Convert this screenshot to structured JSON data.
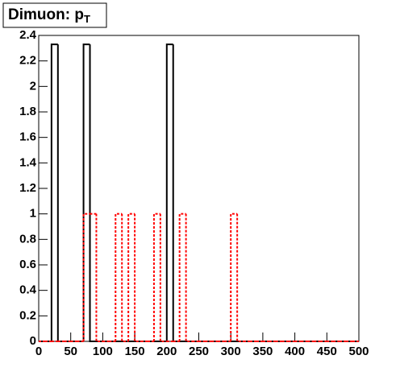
{
  "chart_data": {
    "type": "histogram",
    "title": "Dimuon: p",
    "title_subscript": "T",
    "bins": [
      0,
      10,
      20,
      30,
      40,
      50,
      60,
      70,
      80,
      90,
      100,
      110,
      120,
      130,
      140,
      150,
      160,
      170,
      180,
      190,
      200,
      210,
      220,
      230,
      240,
      250,
      260,
      270,
      280,
      290,
      300,
      310,
      320,
      330,
      340,
      350,
      360,
      370,
      380,
      390,
      400,
      410,
      420,
      430,
      440,
      450,
      460,
      470,
      480,
      490,
      500
    ],
    "series": [
      {
        "color": "#000000",
        "dash": false,
        "values": [
          0,
          0,
          2.33,
          0,
          0,
          0,
          0,
          2.33,
          0,
          0,
          0,
          0,
          0,
          0,
          0,
          0,
          0,
          0,
          0,
          0,
          2.33,
          0,
          0,
          0,
          0,
          0,
          0,
          0,
          0,
          0,
          0,
          0,
          0,
          0,
          0,
          0,
          0,
          0,
          0,
          0,
          0,
          0,
          0,
          0,
          0,
          0,
          0,
          0,
          0,
          0
        ]
      },
      {
        "color": "#ff0000",
        "dash": true,
        "values": [
          0,
          0,
          0,
          0,
          0,
          0,
          0,
          1,
          1,
          0,
          0,
          0,
          1,
          0,
          1,
          0,
          0,
          0,
          1,
          0,
          0,
          0,
          1,
          0,
          0,
          0,
          0,
          0,
          0,
          0,
          1,
          0,
          0,
          0,
          0,
          0,
          0,
          0,
          0,
          0,
          0,
          0,
          0,
          0,
          0,
          0,
          0,
          0,
          0,
          0
        ]
      }
    ],
    "xlim": [
      0,
      500
    ],
    "xticks": [
      0,
      50,
      100,
      150,
      200,
      250,
      300,
      350,
      400,
      450,
      500
    ],
    "ylim": [
      0,
      2.4
    ],
    "yticks": [
      0,
      0.2,
      0.4,
      0.6,
      0.8,
      1,
      1.2,
      1.4,
      1.6,
      1.8,
      2,
      2.2,
      2.4
    ]
  }
}
